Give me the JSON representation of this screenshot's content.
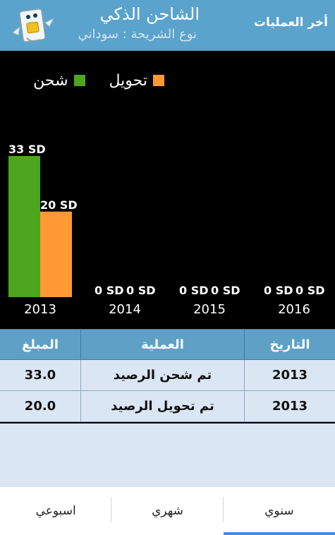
{
  "header": {
    "title": "الشاحن الذكي",
    "subtitle": "نوع الشريحة : سوداني",
    "recent_button": "أخر العمليات"
  },
  "colors": {
    "header_bg": "#59a3cc",
    "charge": "#4ea51e",
    "transfer": "#ff9933"
  },
  "icons": {
    "logo": "sim-card-mascot-icon"
  },
  "chart_data": {
    "type": "bar",
    "categories": [
      "2013",
      "2014",
      "2015",
      "2016"
    ],
    "series": [
      {
        "name": "شحن",
        "values": [
          33,
          0,
          0,
          0
        ],
        "color": "#4ea51e"
      },
      {
        "name": "تحويل",
        "values": [
          20,
          0,
          0,
          0
        ],
        "color": "#ff9933"
      }
    ],
    "data_labels": [
      [
        "33 SD",
        "0 SD",
        "0 SD",
        "0 SD"
      ],
      [
        "20 SD",
        "0 SD",
        "0 SD",
        "0 SD"
      ]
    ],
    "ylim": [
      0,
      33
    ],
    "legend_position": "top",
    "grid": false
  },
  "table": {
    "headers": {
      "date": "التاريخ",
      "operation": "العملية",
      "amount": "المبلغ"
    },
    "rows": [
      {
        "date": "2013",
        "operation": "تم شحن الرصيد",
        "amount": "33.0"
      },
      {
        "date": "2013",
        "operation": "تم تحويل الرصيد",
        "amount": "20.0"
      }
    ]
  },
  "tabs": [
    {
      "label": "سنوي",
      "active": true
    },
    {
      "label": "شهري",
      "active": false
    },
    {
      "label": "اسبوعي",
      "active": false
    }
  ]
}
